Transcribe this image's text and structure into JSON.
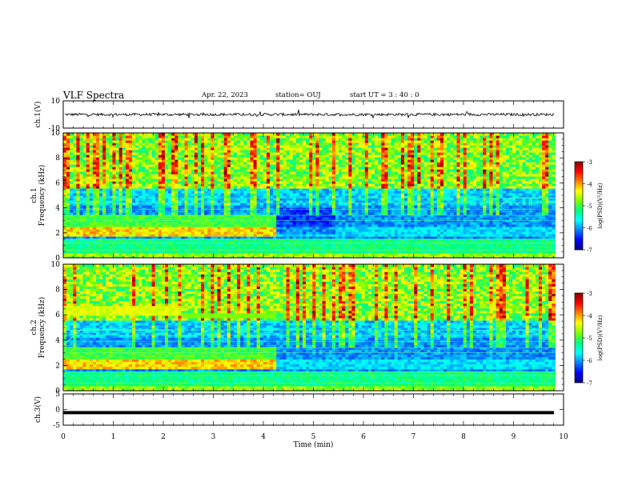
{
  "header": {
    "title": "VLF Spectra",
    "date": "Apr. 22, 2023",
    "station": "station= OUJ",
    "start": "start UT =  3 : 40 : 0"
  },
  "colors": {
    "colormap": [
      "#000080",
      "#0000ff",
      "#0080ff",
      "#00ffff",
      "#00ff80",
      "#80ff00",
      "#ffff00",
      "#ff8000",
      "#ff0000",
      "#800000"
    ],
    "waveform": "#000000",
    "background": "#ffffff"
  },
  "chart_data": [
    {
      "type": "line",
      "panel": "ch1-waveform",
      "ylabel": "ch.1(V)",
      "ylim": [
        -10,
        10
      ],
      "yticks": [
        "10",
        "-10"
      ],
      "xlim": [
        0,
        10
      ],
      "approx_level": 0,
      "approx_amplitude": 1
    },
    {
      "type": "heatmap",
      "panel": "ch1-spectrogram",
      "ylabel": "ch.1\nFrequency (kHz)",
      "ylim": [
        0,
        10
      ],
      "yticks": [
        "0",
        "2",
        "4",
        "6",
        "8",
        "10"
      ],
      "xlim": [
        0,
        10
      ],
      "colorbar": {
        "label": "log(PSD)(V²/Hz)",
        "ticks": [
          "-3",
          "-4",
          "-5",
          "-6",
          "-7"
        ],
        "range": [
          -7,
          -3
        ]
      },
      "data_end_min": 9.83,
      "features": {
        "hiss_band_khz": [
          5.5,
          10
        ],
        "strong_band_khz": [
          1.8,
          2.5
        ],
        "band_shift_min": [
          4.2,
          5.4
        ],
        "rising_tone_min": 8.6
      }
    },
    {
      "type": "heatmap",
      "panel": "ch2-spectrogram",
      "ylabel": "ch.2\nFrequency (kHz)",
      "ylim": [
        0,
        10
      ],
      "yticks": [
        "0",
        "2",
        "4",
        "6",
        "8",
        "10"
      ],
      "xlim": [
        0,
        10
      ],
      "colorbar": {
        "label": "log(PSD)(V²/Hz)",
        "ticks": [
          "-3",
          "-4",
          "-5",
          "-6",
          "-7"
        ],
        "range": [
          -7,
          -3
        ]
      },
      "data_end_min": 9.83,
      "features": {
        "band_6khz_end_min": 2.3,
        "strong_band_khz": [
          1.8,
          2.5
        ],
        "band_shift_min": 4.2,
        "rising_tone_min": 8.6
      }
    },
    {
      "type": "line",
      "panel": "ch3-waveform",
      "ylabel": "ch.3(V)",
      "ylim": [
        -5,
        5
      ],
      "yticks": [
        "5",
        "0",
        "-5"
      ],
      "xlim": [
        0,
        10
      ],
      "approx_level": -1
    }
  ],
  "xaxis": {
    "label": "Time (min)",
    "ticks": [
      "0",
      "1",
      "2",
      "3",
      "4",
      "5",
      "6",
      "7",
      "8",
      "9",
      "10"
    ]
  }
}
